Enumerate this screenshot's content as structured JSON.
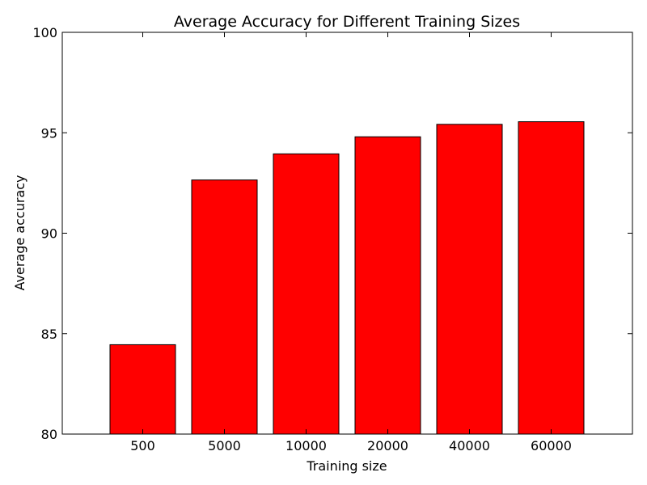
{
  "chart_data": {
    "type": "bar",
    "title": "Average Accuracy for Different Training Sizes",
    "xlabel": "Training size",
    "ylabel": "Average accuracy",
    "categories": [
      "500",
      "5000",
      "10000",
      "20000",
      "40000",
      "60000"
    ],
    "values": [
      84.45,
      92.65,
      93.95,
      94.8,
      95.42,
      95.55
    ],
    "ylim": [
      80,
      100
    ],
    "yticks": [
      80,
      85,
      90,
      95,
      100
    ],
    "grid": false,
    "legend": "none",
    "bar_color": "#ff0000",
    "edge_color": "#000000"
  }
}
